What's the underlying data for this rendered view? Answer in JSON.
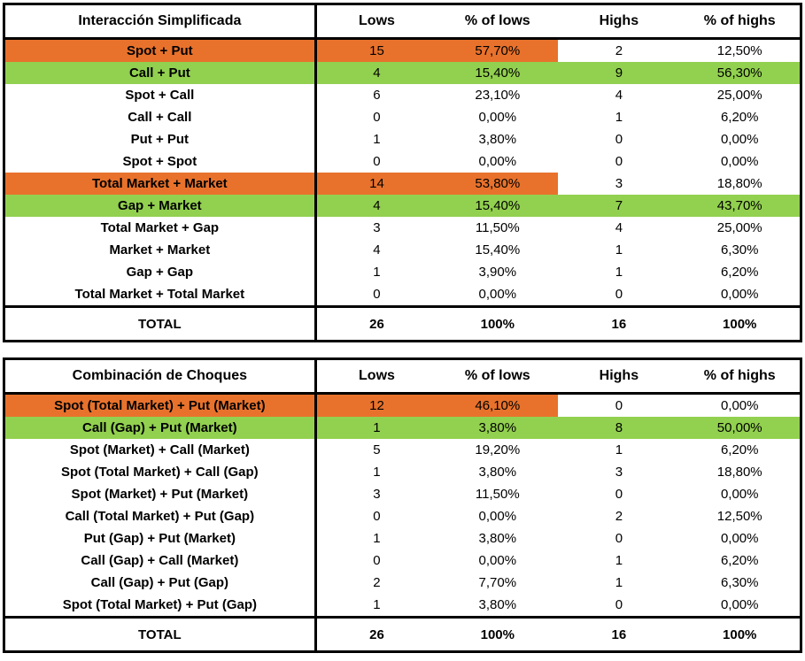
{
  "colors": {
    "highlight_orange": "#E8722C",
    "highlight_green": "#92D04F",
    "border": "#000000",
    "background": "#FFFFFF",
    "text": "#000000"
  },
  "chart_data": [
    {
      "type": "table",
      "title": "Interacción Simplificada",
      "columns": [
        "Lows",
        "% of lows",
        "Highs",
        "% of highs"
      ],
      "rows": [
        {
          "label": "Spot + Put",
          "values": [
            "15",
            "57,70%",
            "2",
            "12,50%"
          ],
          "highlight": "orange",
          "highlight_cols": 2
        },
        {
          "label": "Call + Put",
          "values": [
            "4",
            "15,40%",
            "9",
            "56,30%"
          ],
          "highlight": "green",
          "highlight_cols": 4
        },
        {
          "label": "Spot + Call",
          "values": [
            "6",
            "23,10%",
            "4",
            "25,00%"
          ],
          "highlight": "none",
          "highlight_cols": 0
        },
        {
          "label": "Call + Call",
          "values": [
            "0",
            "0,00%",
            "1",
            "6,20%"
          ],
          "highlight": "none",
          "highlight_cols": 0
        },
        {
          "label": "Put + Put",
          "values": [
            "1",
            "3,80%",
            "0",
            "0,00%"
          ],
          "highlight": "none",
          "highlight_cols": 0
        },
        {
          "label": "Spot + Spot",
          "values": [
            "0",
            "0,00%",
            "0",
            "0,00%"
          ],
          "highlight": "none",
          "highlight_cols": 0
        },
        {
          "label": "Total Market + Market",
          "values": [
            "14",
            "53,80%",
            "3",
            "18,80%"
          ],
          "highlight": "orange",
          "highlight_cols": 2
        },
        {
          "label": "Gap + Market",
          "values": [
            "4",
            "15,40%",
            "7",
            "43,70%"
          ],
          "highlight": "green",
          "highlight_cols": 4
        },
        {
          "label": "Total Market + Gap",
          "values": [
            "3",
            "11,50%",
            "4",
            "25,00%"
          ],
          "highlight": "none",
          "highlight_cols": 0
        },
        {
          "label": "Market + Market",
          "values": [
            "4",
            "15,40%",
            "1",
            "6,30%"
          ],
          "highlight": "none",
          "highlight_cols": 0
        },
        {
          "label": "Gap + Gap",
          "values": [
            "1",
            "3,90%",
            "1",
            "6,20%"
          ],
          "highlight": "none",
          "highlight_cols": 0
        },
        {
          "label": "Total Market + Total Market",
          "values": [
            "0",
            "0,00%",
            "0",
            "0,00%"
          ],
          "highlight": "none",
          "highlight_cols": 0
        }
      ],
      "total": {
        "label": "TOTAL",
        "values": [
          "26",
          "100%",
          "16",
          "100%"
        ]
      }
    },
    {
      "type": "table",
      "title": "Combinación de Choques",
      "columns": [
        "Lows",
        "% of lows",
        "Highs",
        "% of highs"
      ],
      "rows": [
        {
          "label": "Spot (Total Market) + Put (Market)",
          "values": [
            "12",
            "46,10%",
            "0",
            "0,00%"
          ],
          "highlight": "orange",
          "highlight_cols": 2
        },
        {
          "label": "Call (Gap) + Put (Market)",
          "values": [
            "1",
            "3,80%",
            "8",
            "50,00%"
          ],
          "highlight": "green",
          "highlight_cols": 4
        },
        {
          "label": "Spot (Market) + Call (Market)",
          "values": [
            "5",
            "19,20%",
            "1",
            "6,20%"
          ],
          "highlight": "none",
          "highlight_cols": 0
        },
        {
          "label": "Spot (Total Market) + Call (Gap)",
          "values": [
            "1",
            "3,80%",
            "3",
            "18,80%"
          ],
          "highlight": "none",
          "highlight_cols": 0
        },
        {
          "label": "Spot (Market) + Put (Market)",
          "values": [
            "3",
            "11,50%",
            "0",
            "0,00%"
          ],
          "highlight": "none",
          "highlight_cols": 0
        },
        {
          "label": "Call (Total Market) + Put (Gap)",
          "values": [
            "0",
            "0,00%",
            "2",
            "12,50%"
          ],
          "highlight": "none",
          "highlight_cols": 0
        },
        {
          "label": "Put (Gap) + Put (Market)",
          "values": [
            "1",
            "3,80%",
            "0",
            "0,00%"
          ],
          "highlight": "none",
          "highlight_cols": 0
        },
        {
          "label": "Call (Gap) + Call (Market)",
          "values": [
            "0",
            "0,00%",
            "1",
            "6,20%"
          ],
          "highlight": "none",
          "highlight_cols": 0
        },
        {
          "label": "Call (Gap) + Put (Gap)",
          "values": [
            "2",
            "7,70%",
            "1",
            "6,30%"
          ],
          "highlight": "none",
          "highlight_cols": 0
        },
        {
          "label": "Spot (Total Market) + Put (Gap)",
          "values": [
            "1",
            "3,80%",
            "0",
            "0,00%"
          ],
          "highlight": "none",
          "highlight_cols": 0
        }
      ],
      "total": {
        "label": "TOTAL",
        "values": [
          "26",
          "100%",
          "16",
          "100%"
        ]
      }
    }
  ]
}
